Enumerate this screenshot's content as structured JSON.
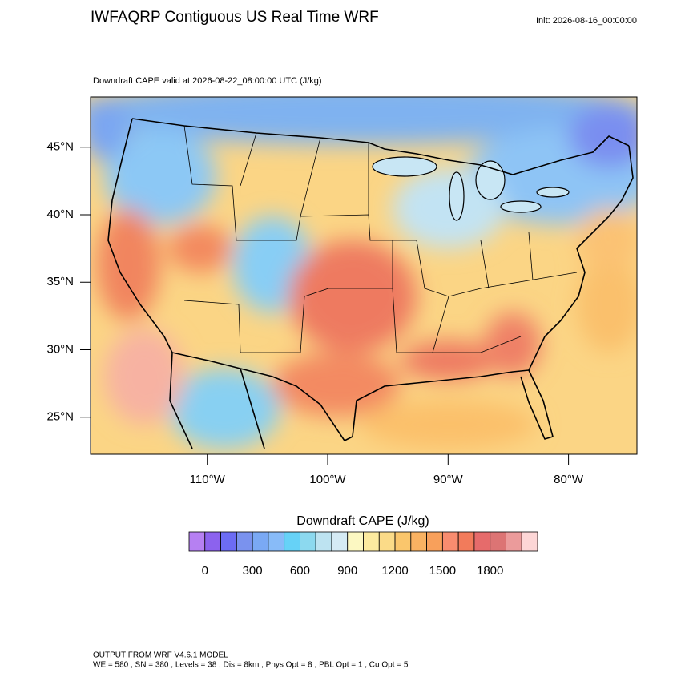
{
  "header": {
    "title": "IWFAQRP Contiguous US Real Time WRF",
    "init": "Init: 2026-08-16_00:00:00"
  },
  "map": {
    "subtitle": "Downdraft CAPE valid at 2026-08-22_08:00:00 UTC   (J/kg)",
    "lat_ticks": [
      {
        "value": 45,
        "label": "45°N"
      },
      {
        "value": 40,
        "label": "40°N"
      },
      {
        "value": 35,
        "label": "35°N"
      },
      {
        "value": 30,
        "label": "30°N"
      },
      {
        "value": 25,
        "label": "25°N"
      }
    ],
    "lon_ticks": [
      {
        "value": -110,
        "label": "110°W"
      },
      {
        "value": -100,
        "label": "100°W"
      },
      {
        "value": -90,
        "label": "90°W"
      },
      {
        "value": -80,
        "label": "80°W"
      }
    ]
  },
  "colorbar": {
    "title": "Downdraft CAPE  (J/kg)",
    "levels": [
      0,
      100,
      200,
      300,
      400,
      500,
      600,
      700,
      800,
      900,
      1000,
      1100,
      1200,
      1300,
      1400,
      1500,
      1600,
      1700,
      1800,
      1900,
      2000
    ],
    "colors": [
      "#b680f2",
      "#8c62ee",
      "#6c6cf4",
      "#7a92ee",
      "#7aa9f4",
      "#88bbf8",
      "#66d2f7",
      "#8cd9ef",
      "#bde3f1",
      "#d5ebf5",
      "#fcf8c2",
      "#fcea9f",
      "#fbdb88",
      "#fac66c",
      "#f9b262",
      "#f8a05b",
      "#f88c6f",
      "#f27b5b",
      "#e66b6b",
      "#dc7474",
      "#eb9b9b",
      "#fdd6d6"
    ],
    "ticks": [
      0,
      300,
      600,
      900,
      1200,
      1500,
      1800
    ]
  },
  "footer": {
    "line1": "OUTPUT FROM WRF V4.6.1 MODEL",
    "line2": "WE = 580 ; SN = 380 ; Levels = 38 ; Dis = 8km ; Phys Opt = 8 ; PBL Opt = 1 ; Cu Opt = 5"
  }
}
